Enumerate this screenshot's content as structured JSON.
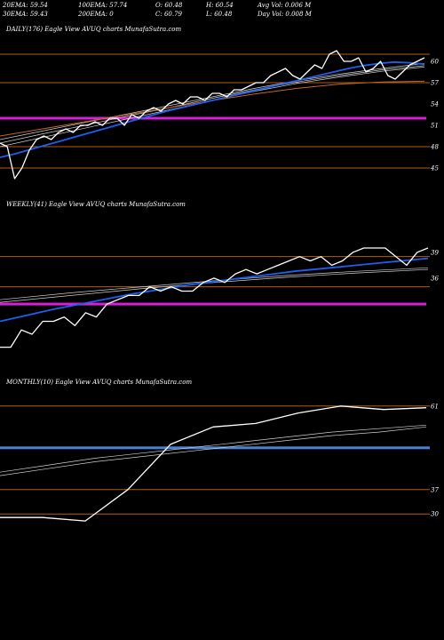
{
  "header": {
    "row1": [
      "20EMA: 59.54",
      "100EMA: 57.74",
      "O: 60.48",
      "H: 60.54",
      "Avg Vol: 0.006  M"
    ],
    "row2": [
      "30EMA: 59.43",
      "200EMA: 0",
      "C: 60.79",
      "L: 60.48",
      "Day Vol: 0.008  M"
    ]
  },
  "colors": {
    "background": "#000000",
    "price": "#ffffff",
    "ema_blue": "#1e5ff0",
    "magenta": "#d81ed8",
    "level_line": "#b35c17",
    "monthly_level": "#4a7fd6"
  },
  "chart_data": [
    {
      "type": "line",
      "label": "DAILY(176) Eagle  View  AVUQ charts MunafaSutra.com",
      "ylim": [
        43,
        63
      ],
      "y_ticks": [
        60,
        57,
        54,
        51,
        48,
        45
      ],
      "levels": [
        61,
        57,
        48,
        45
      ],
      "magenta_level": 52,
      "price": [
        48.5,
        48,
        43.5,
        45,
        47.5,
        49,
        49.5,
        49,
        50,
        50.5,
        50,
        51,
        51,
        51.5,
        51,
        52,
        52,
        51,
        52.5,
        52,
        53,
        53.5,
        53,
        54,
        54.5,
        54,
        55,
        55,
        54.5,
        55.5,
        55.5,
        55,
        56,
        56,
        56.5,
        57,
        57,
        58,
        58.5,
        59,
        58,
        57.5,
        58.5,
        59.5,
        59,
        61,
        61.5,
        60,
        60,
        60.5,
        58.5,
        59,
        60,
        58,
        57.5,
        58.5,
        59.5,
        60,
        60.5
      ],
      "ema_blue": [
        46.5,
        47,
        47.6,
        48.2,
        48.8,
        49.4,
        50,
        50.6,
        51.2,
        51.8,
        52.4,
        53,
        53.5,
        54,
        54.5,
        55,
        55.5,
        56,
        56.5,
        57,
        57.5,
        58,
        58.5,
        59,
        59.4,
        59.7,
        59.9,
        59.8,
        59.6
      ],
      "ema_thin": [
        [
          49,
          50.2,
          51.4,
          52.6,
          53.8,
          55,
          56.2,
          57.3,
          58.2,
          59,
          59.7
        ],
        [
          48.5,
          49.8,
          51,
          52.3,
          53.5,
          54.8,
          56,
          57.1,
          58,
          58.8,
          59.4
        ],
        [
          48,
          49.3,
          50.6,
          51.9,
          53.2,
          54.5,
          55.8,
          56.9,
          57.8,
          58.6,
          59.2
        ]
      ],
      "ema_orange": [
        49.5,
        50.5,
        51.5,
        52.5,
        53.5,
        54.5,
        55.4,
        56.2,
        56.8,
        57.1,
        57.2
      ]
    },
    {
      "type": "line",
      "label": "WEEKLY(41) Eagle  View  AVUQ charts MunafaSutra.com",
      "ylim": [
        26,
        43
      ],
      "y_ticks": [
        39,
        36
      ],
      "levels": [
        38.5,
        35
      ],
      "magenta_level": 33,
      "price": [
        28,
        28,
        30,
        29.5,
        31,
        31,
        31.5,
        30.5,
        32,
        31.5,
        33,
        33.5,
        34,
        34,
        35,
        34.5,
        35,
        34.5,
        34.5,
        35.5,
        36,
        35.5,
        36.5,
        37,
        36.5,
        37,
        37.5,
        38,
        38.5,
        38,
        38.5,
        37.5,
        38,
        39,
        39.5,
        39.5,
        39.5,
        38.5,
        37.5,
        39,
        39.5
      ],
      "ema_blue": [
        31,
        31.7,
        32.4,
        33,
        33.6,
        34.2,
        34.7,
        35.2,
        35.6,
        36,
        36.4,
        36.8,
        37.1,
        37.4,
        37.7,
        38,
        38.3
      ],
      "ema_thin": [
        [
          33.5,
          34.3,
          35,
          35.7,
          36.3,
          36.8,
          37.2
        ],
        [
          33.2,
          34,
          34.8,
          35.5,
          36.1,
          36.6,
          37
        ]
      ]
    },
    {
      "type": "line",
      "label": "MONTHLY(10) Eagle  View  AVUQ charts MunafaSutra.com",
      "ylim": [
        27,
        64
      ],
      "y_ticks": [
        61,
        37,
        30
      ],
      "levels": [
        61,
        37,
        30
      ],
      "blue_level": 49,
      "price": [
        29,
        29,
        28,
        37,
        50,
        55,
        56,
        59,
        61,
        60,
        60.5
      ],
      "ema_thin": [
        [
          42,
          44,
          46,
          47.5,
          49,
          50.5,
          52,
          53.5,
          54.5,
          55.5
        ],
        [
          41,
          43,
          45,
          46.5,
          48,
          49.5,
          51,
          52.5,
          53.5,
          55
        ]
      ]
    }
  ]
}
